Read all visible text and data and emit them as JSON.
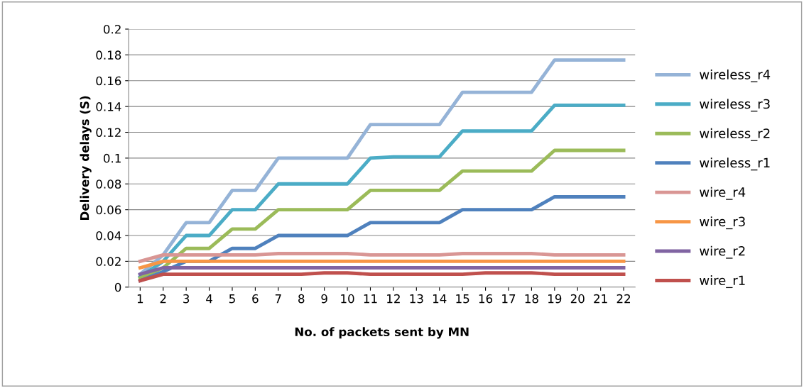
{
  "chart_data": {
    "type": "line",
    "xlabel": "No. of packets sent by MN",
    "ylabel": "Delivery delays (S)",
    "categories": [
      "1",
      "2",
      "3",
      "4",
      "5",
      "6",
      "7",
      "8",
      "9",
      "10",
      "11",
      "12",
      "13",
      "14",
      "15",
      "16",
      "17",
      "18",
      "19",
      "20",
      "21",
      "22"
    ],
    "series": [
      {
        "name": "wireless_r4",
        "color": "#95b3d7",
        "values": [
          0.01,
          0.025,
          0.05,
          0.05,
          0.075,
          0.075,
          0.1,
          0.1,
          0.1,
          0.1,
          0.126,
          0.126,
          0.126,
          0.126,
          0.151,
          0.151,
          0.151,
          0.151,
          0.176,
          0.176,
          0.176,
          0.176
        ]
      },
      {
        "name": "wireless_r3",
        "color": "#4bacc6",
        "values": [
          0.008,
          0.02,
          0.04,
          0.04,
          0.06,
          0.06,
          0.08,
          0.08,
          0.08,
          0.08,
          0.1,
          0.101,
          0.101,
          0.101,
          0.121,
          0.121,
          0.121,
          0.121,
          0.141,
          0.141,
          0.141,
          0.141
        ]
      },
      {
        "name": "wireless_r2",
        "color": "#9bbb59",
        "values": [
          0.007,
          0.015,
          0.03,
          0.03,
          0.045,
          0.045,
          0.06,
          0.06,
          0.06,
          0.06,
          0.075,
          0.075,
          0.075,
          0.075,
          0.09,
          0.09,
          0.09,
          0.09,
          0.106,
          0.106,
          0.106,
          0.106
        ]
      },
      {
        "name": "wireless_r1",
        "color": "#4f81bd",
        "values": [
          0.005,
          0.012,
          0.02,
          0.02,
          0.03,
          0.03,
          0.04,
          0.04,
          0.04,
          0.04,
          0.05,
          0.05,
          0.05,
          0.05,
          0.06,
          0.06,
          0.06,
          0.06,
          0.07,
          0.07,
          0.07,
          0.07
        ]
      },
      {
        "name": "wire_r4",
        "color": "#d99694",
        "values": [
          0.02,
          0.025,
          0.025,
          0.025,
          0.025,
          0.025,
          0.026,
          0.026,
          0.026,
          0.026,
          0.025,
          0.025,
          0.025,
          0.025,
          0.026,
          0.026,
          0.026,
          0.026,
          0.025,
          0.025,
          0.025,
          0.025
        ]
      },
      {
        "name": "wire_r3",
        "color": "#f79646",
        "values": [
          0.015,
          0.02,
          0.02,
          0.02,
          0.02,
          0.02,
          0.02,
          0.02,
          0.02,
          0.02,
          0.02,
          0.02,
          0.02,
          0.02,
          0.02,
          0.02,
          0.02,
          0.02,
          0.02,
          0.02,
          0.02,
          0.02
        ]
      },
      {
        "name": "wire_r2",
        "color": "#8064a2",
        "values": [
          0.01,
          0.015,
          0.015,
          0.015,
          0.015,
          0.015,
          0.015,
          0.015,
          0.015,
          0.015,
          0.015,
          0.015,
          0.015,
          0.015,
          0.015,
          0.015,
          0.015,
          0.015,
          0.015,
          0.015,
          0.015,
          0.015
        ]
      },
      {
        "name": "wire_r1",
        "color": "#c0504d",
        "values": [
          0.005,
          0.01,
          0.01,
          0.01,
          0.01,
          0.01,
          0.01,
          0.01,
          0.011,
          0.011,
          0.01,
          0.01,
          0.01,
          0.01,
          0.01,
          0.011,
          0.011,
          0.011,
          0.01,
          0.01,
          0.01,
          0.01
        ]
      }
    ],
    "ylim": [
      0,
      0.2
    ],
    "yticks": [
      0,
      0.02,
      0.04,
      0.06,
      0.08,
      0.1,
      0.12,
      0.14,
      0.16,
      0.18,
      0.2
    ],
    "grid": "y",
    "legend": "right",
    "marker": "none",
    "line_style": "solid"
  }
}
